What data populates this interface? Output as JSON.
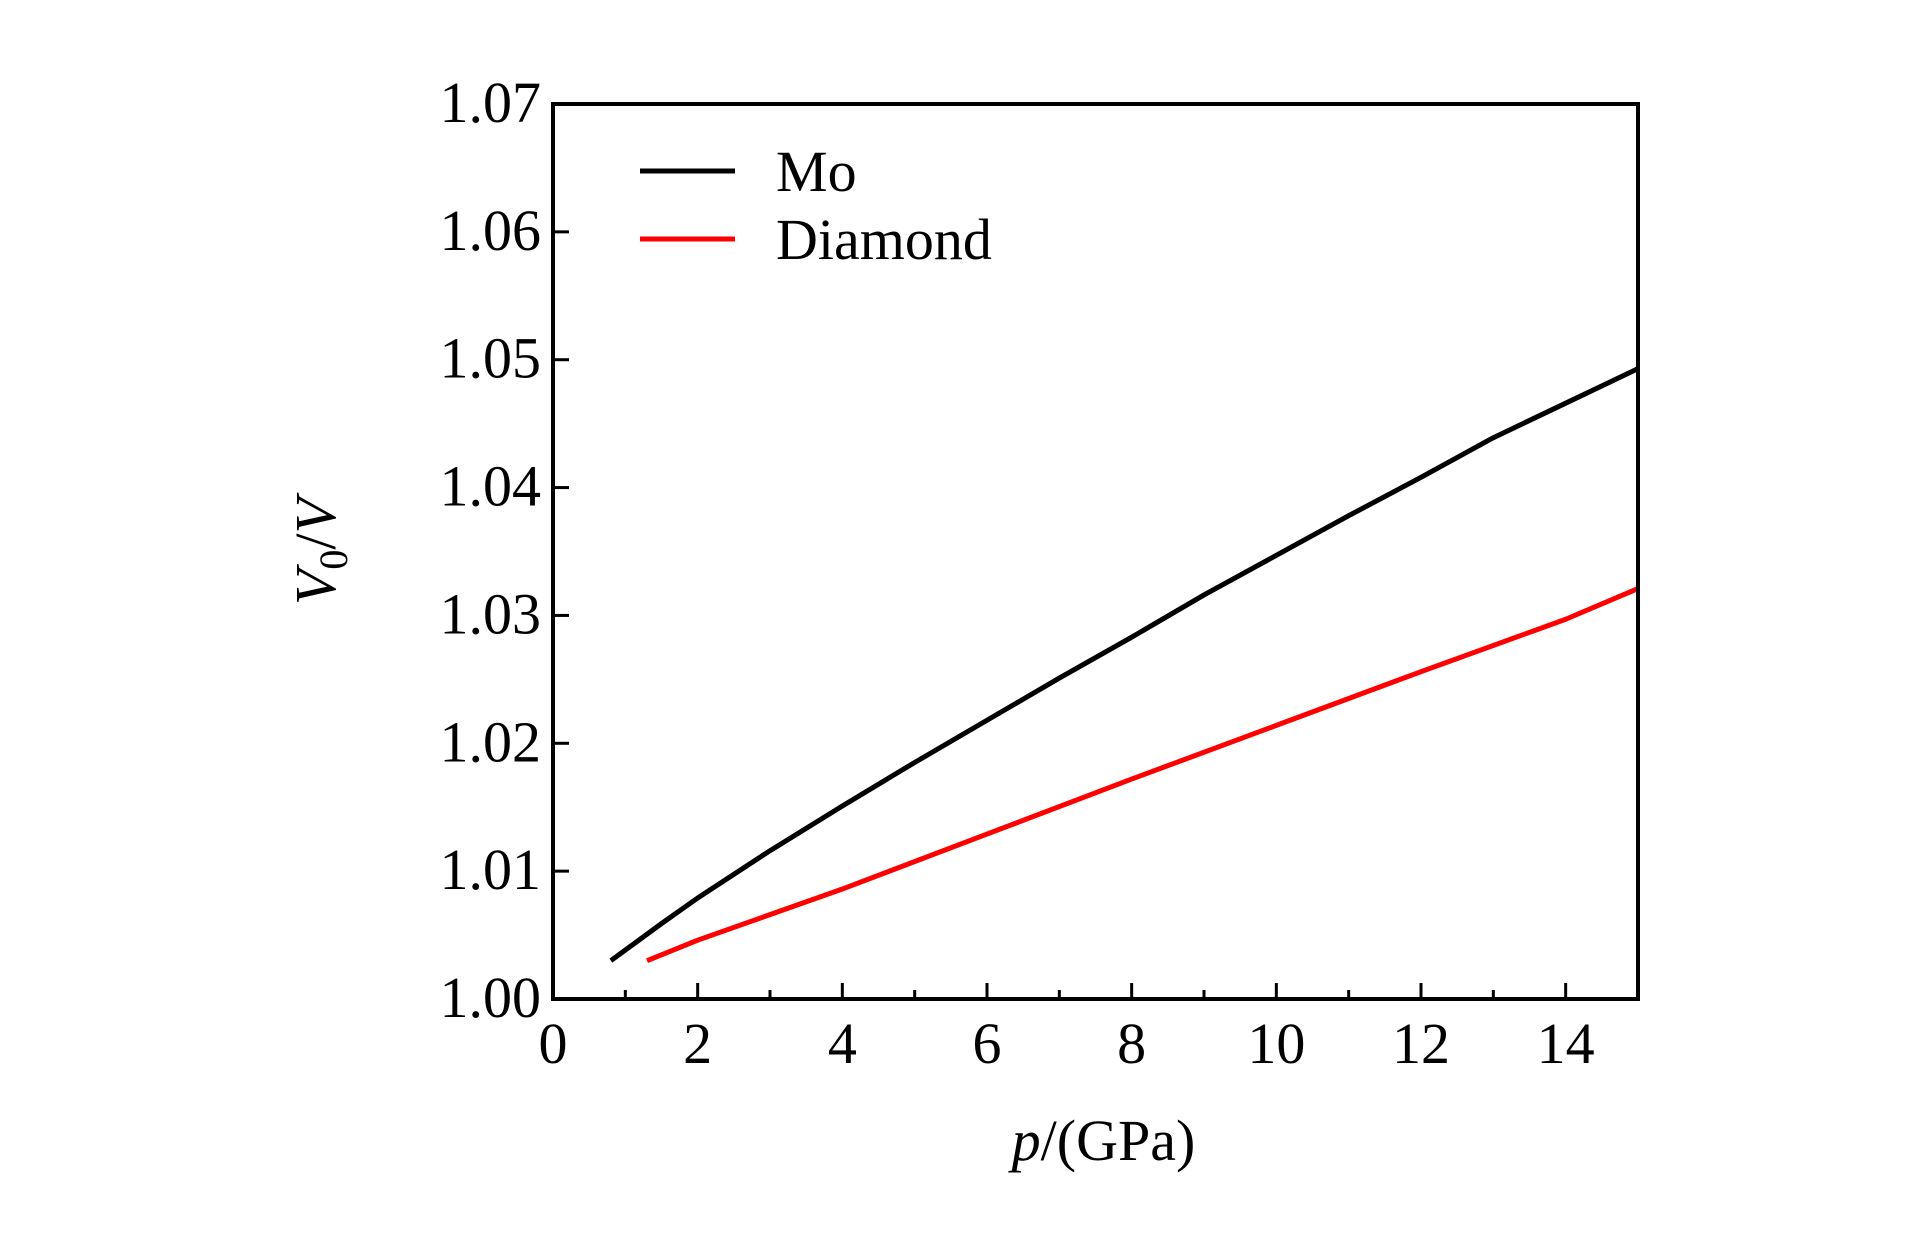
{
  "chart_data": {
    "type": "line",
    "title": "",
    "xlabel": {
      "var": "p",
      "unit": "/(GPa)"
    },
    "ylabel": {
      "var": "V",
      "sub": "0",
      "rest": "/",
      "var2": "V"
    },
    "xlim": [
      0,
      15
    ],
    "ylim": [
      1.0,
      1.07
    ],
    "x_major_ticks": [
      0,
      2,
      4,
      6,
      8,
      10,
      12,
      14
    ],
    "x_major_tick_labels": [
      "0",
      "2",
      "4",
      "6",
      "8",
      "10",
      "12",
      "14"
    ],
    "x_minor_ticks": [
      1,
      3,
      5,
      7,
      9,
      11,
      13
    ],
    "y_major_ticks": [
      1.0,
      1.01,
      1.02,
      1.03,
      1.04,
      1.05,
      1.06,
      1.07
    ],
    "y_major_tick_labels": [
      "1.00",
      "1.01",
      "1.02",
      "1.03",
      "1.04",
      "1.05",
      "1.06",
      "1.07"
    ],
    "grid": false,
    "legend_position": "top-left",
    "series": [
      {
        "name": "Mo",
        "color": "#000000",
        "x": [
          0.8,
          1.5,
          2.0,
          3.0,
          4.0,
          5.0,
          6.0,
          7.0,
          8.0,
          9.0,
          10.0,
          11.0,
          12.0,
          13.0,
          14.0,
          15.0
        ],
        "y": [
          1.003,
          1.0059,
          1.0079,
          1.0116,
          1.0151,
          1.0185,
          1.0218,
          1.0251,
          1.0283,
          1.0316,
          1.0347,
          1.0378,
          1.0408,
          1.0439,
          1.0466,
          1.0493
        ]
      },
      {
        "name": "Diamond",
        "color": "#ff0000",
        "x": [
          1.3,
          2.0,
          4.0,
          6.0,
          8.0,
          10.0,
          12.0,
          14.0,
          15.0
        ],
        "y": [
          1.003,
          1.0046,
          1.0086,
          1.0129,
          1.0172,
          1.0214,
          1.0256,
          1.0297,
          1.0321
        ]
      }
    ]
  }
}
